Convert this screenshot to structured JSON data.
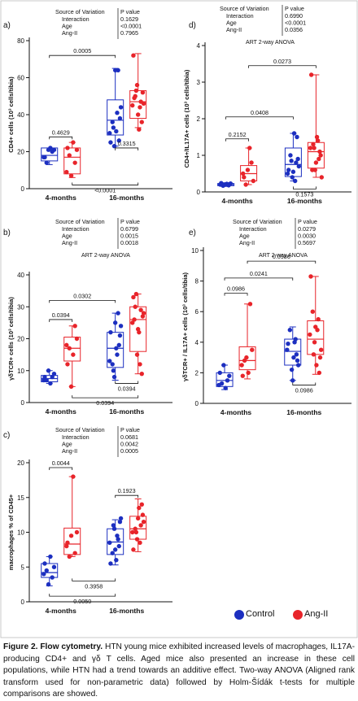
{
  "caption": {
    "label": "Figure 2. Flow cytometry.",
    "text": " HTN young mice exhibited increased levels of macrophages, IL17A-producing CD4+ and γδ T cells. Aged mice also presented an increase in these cell populations, while HTN had a trend towards an additive effect. Two-way ANOVA (Aligned rank transform used for non-parametric data) followed by Holm-Šídák t-tests for multiple comparisons are showed."
  },
  "legend": {
    "items": [
      {
        "label": "Control",
        "color": "#1c2fc0"
      },
      {
        "label": "Ang-II",
        "color": "#e8242a"
      }
    ]
  },
  "colors": {
    "control": "#1c2fc0",
    "angii": "#e8242a",
    "axis": "#111111"
  },
  "chart_data": [
    {
      "panel": "a)",
      "type": "box",
      "ylabel": "CD4+ cells (10³ cells/tibia)",
      "ylim": [
        0,
        80
      ],
      "yticks": [
        0,
        20,
        40,
        60,
        80
      ],
      "categories": [
        "4-months",
        "16-months"
      ],
      "series": [
        {
          "name": "Control",
          "points": [
            [
              17,
              21,
              20,
              22,
              21,
              14,
              17
            ],
            [
              30,
              38,
              64,
              31,
              23,
              36,
              25,
              44,
              26,
              41,
              64,
              33
            ]
          ],
          "box": [
            [
              15,
              18,
              22
            ],
            [
              29,
              37,
              48
            ]
          ],
          "whisk": [
            [
              13,
              22
            ],
            [
              23,
              65
            ]
          ]
        },
        {
          "name": "Ang-II",
          "points": [
            [
              9,
              21,
              14,
              25,
              7,
              18,
              22
            ],
            [
              45,
              52,
              47,
              32,
              56,
              50,
              72,
              46,
              36,
              44,
              40,
              53,
              49
            ]
          ],
          "box": [
            [
              8,
              17,
              22
            ],
            [
              38,
              47,
              53
            ]
          ],
          "whisk": [
            [
              6,
              25
            ],
            [
              33,
              73
            ]
          ]
        }
      ],
      "anova": {
        "header": [
          "Source of Variation",
          "P value"
        ],
        "rows": [
          [
            "Interaction",
            "0.1629"
          ],
          [
            "Age",
            "<0.0001"
          ],
          [
            "Ang-II",
            "0.7965"
          ]
        ],
        "note": ""
      },
      "pvalues": [
        {
          "label": "0.4629",
          "from": [
            0,
            0
          ],
          "to": [
            0,
            1
          ],
          "y": 28
        },
        {
          "label": "0.0005",
          "from": [
            0,
            0
          ],
          "to": [
            1,
            0
          ],
          "y": 72
        },
        {
          "label": "0.3315",
          "from": [
            1,
            0
          ],
          "to": [
            1,
            1
          ],
          "y": 22
        },
        {
          "label": "<0.0001",
          "from": [
            0,
            1
          ],
          "to": [
            1,
            1
          ],
          "y": 2,
          "below": true
        }
      ]
    },
    {
      "panel": "d)",
      "type": "box",
      "ylabel": "CD4+/IL17A+ cells (10³ cells/tibia)",
      "ylim": [
        0,
        4
      ],
      "yticks": [
        0,
        1,
        2,
        3,
        4
      ],
      "categories": [
        "4-months",
        "16-months"
      ],
      "series": [
        {
          "name": "Control",
          "points": [
            [
              0.2,
              0.23,
              0.18,
              0.22,
              0.2,
              0.17,
              0.24
            ],
            [
              0.5,
              0.9,
              0.8,
              1.6,
              0.4,
              1.0,
              0.6,
              0.7,
              1.5,
              0.3,
              0.55,
              0.85
            ]
          ],
          "box": [
            [
              0.17,
              0.2,
              0.23
            ],
            [
              0.42,
              0.75,
              1.2
            ]
          ],
          "whisk": [
            [
              0.15,
              0.25
            ],
            [
              0.3,
              1.6
            ]
          ]
        },
        {
          "name": "Ang-II",
          "points": [
            [
              0.5,
              0.3,
              0.8,
              1.2,
              0.6,
              0.2,
              0.4
            ],
            [
              1.2,
              1.0,
              0.9,
              1.5,
              0.6,
              1.3,
              3.2,
              0.4,
              1.1,
              1.4,
              0.8,
              1.2,
              0.6
            ]
          ],
          "box": [
            [
              0.3,
              0.5,
              0.72
            ],
            [
              0.65,
              1.1,
              1.35
            ]
          ],
          "whisk": [
            [
              0.2,
              1.2
            ],
            [
              0.4,
              3.2
            ]
          ]
        }
      ],
      "anova": {
        "header": [
          "Source of Variation",
          "P value"
        ],
        "rows": [
          [
            "Interaction",
            "0.6990"
          ],
          [
            "Age",
            "<0.0001"
          ],
          [
            "Ang-II",
            "0.0356"
          ]
        ],
        "note": "ART 2-way ANOVA"
      },
      "pvalues": [
        {
          "label": "0.2152",
          "from": [
            0,
            0
          ],
          "to": [
            0,
            1
          ],
          "y": 1.45
        },
        {
          "label": "0.0408",
          "from": [
            0,
            0
          ],
          "to": [
            1,
            0
          ],
          "y": 2.05
        },
        {
          "label": "0.0273",
          "from": [
            0,
            1
          ],
          "to": [
            1,
            1
          ],
          "y": 3.45
        },
        {
          "label": "0.1573",
          "from": [
            1,
            0
          ],
          "to": [
            1,
            1
          ],
          "y": 0.08,
          "below": true
        }
      ]
    },
    {
      "panel": "b)",
      "type": "box",
      "ylabel": "γδTCR+ cells (10³ cells/tibia)",
      "ylim": [
        0,
        40
      ],
      "yticks": [
        0,
        10,
        20,
        30,
        40
      ],
      "categories": [
        "4-months",
        "16-months"
      ],
      "series": [
        {
          "name": "Control",
          "points": [
            [
              7,
              9,
              8,
              6,
              10,
              7,
              8
            ],
            [
              13,
              21,
              28,
              17,
              8,
              12,
              22,
              24,
              18,
              15,
              25,
              10
            ]
          ],
          "box": [
            [
              6.5,
              7.5,
              8.5
            ],
            [
              11,
              17,
              22
            ]
          ],
          "whisk": [
            [
              6,
              10
            ],
            [
              7,
              28
            ]
          ]
        },
        {
          "name": "Ang-II",
          "points": [
            [
              18,
              20,
              24,
              15,
              5,
              17,
              12
            ],
            [
              25,
              27,
              29,
              22,
              15,
              30,
              33,
              28,
              9,
              12,
              23,
              34,
              26
            ]
          ],
          "box": [
            [
              13,
              17,
              20.5
            ],
            [
              16,
              26,
              30
            ]
          ],
          "whisk": [
            [
              5,
              24
            ],
            [
              9,
              34
            ]
          ]
        }
      ],
      "anova": {
        "header": [
          "Source of Variation",
          "P value"
        ],
        "rows": [
          [
            "Interaction",
            "0.6799"
          ],
          [
            "Age",
            "0.0015"
          ],
          [
            "Ang-II",
            "0.0018"
          ]
        ],
        "note": "ART 2-way ANOVA"
      },
      "pvalues": [
        {
          "label": "0.0394",
          "from": [
            0,
            0
          ],
          "to": [
            0,
            1
          ],
          "y": 26
        },
        {
          "label": "0.0302",
          "from": [
            0,
            0
          ],
          "to": [
            1,
            0
          ],
          "y": 32
        },
        {
          "label": "0.0394",
          "from": [
            1,
            0
          ],
          "to": [
            1,
            1
          ],
          "y": 6,
          "below": true
        },
        {
          "label": "0.0394",
          "from": [
            0,
            1
          ],
          "to": [
            1,
            1
          ],
          "y": 1.5,
          "below": true
        }
      ]
    },
    {
      "panel": "e)",
      "type": "box",
      "ylabel": "γδTCR+ / IL17A+ cells (10³ cells/tibia)",
      "ylim": [
        0,
        10
      ],
      "yticks": [
        0,
        2,
        4,
        6,
        8,
        10
      ],
      "categories": [
        "4-months",
        "16-months"
      ],
      "series": [
        {
          "name": "Control",
          "points": [
            [
              1.2,
              1.8,
              1.5,
              1.0,
              2.5,
              1.3,
              2.0
            ],
            [
              3.5,
              2.8,
              4.2,
              3.0,
              2.2,
              4.8,
              3.9,
              2.5,
              3.2,
              4.0,
              1.5
            ]
          ],
          "box": [
            [
              1.1,
              1.5,
              2.0
            ],
            [
              2.5,
              3.4,
              4.2
            ]
          ],
          "whisk": [
            [
              0.9,
              2.5
            ],
            [
              1.5,
              5.0
            ]
          ]
        },
        {
          "name": "Ang-II",
          "points": [
            [
              2.5,
              3.5,
              6.5,
              2.0,
              3.0,
              2.8,
              1.8
            ],
            [
              4.5,
              3.0,
              5.5,
              2.5,
              4.0,
              6.0,
              8.3,
              3.5,
              2.0,
              4.8,
              5.0,
              3.2
            ]
          ],
          "box": [
            [
              2.2,
              2.8,
              3.7
            ],
            [
              3.2,
              4.2,
              5.4
            ]
          ],
          "whisk": [
            [
              1.6,
              6.5
            ],
            [
              1.9,
              8.3
            ]
          ]
        }
      ],
      "anova": {
        "header": [
          "Source of Variation",
          "P value"
        ],
        "rows": [
          [
            "Interaction",
            "0.0279"
          ],
          [
            "Age",
            "0.0030"
          ],
          [
            "Ang-II",
            "0.5697"
          ]
        ],
        "note": "ART 2-way ANOVA"
      },
      "pvalues": [
        {
          "label": "0.0986",
          "from": [
            0,
            0
          ],
          "to": [
            0,
            1
          ],
          "y": 7.2
        },
        {
          "label": "0.0241",
          "from": [
            0,
            0
          ],
          "to": [
            1,
            0
          ],
          "y": 8.2
        },
        {
          "label": "0.0986",
          "from": [
            0,
            1
          ],
          "to": [
            1,
            1
          ],
          "y": 9.3
        },
        {
          "label": "0.0986",
          "from": [
            1,
            0
          ],
          "to": [
            1,
            1
          ],
          "y": 1.2,
          "below": true
        }
      ]
    },
    {
      "panel": "c)",
      "type": "box",
      "ylabel": "macrophages % of CD45+",
      "ylim": [
        0,
        20
      ],
      "yticks": [
        0,
        5,
        10,
        15,
        20
      ],
      "categories": [
        "4-months",
        "16-months"
      ],
      "series": [
        {
          "name": "Control",
          "points": [
            [
              4,
              5,
              3.5,
              6.5,
              2.5,
              4.5,
              5.5
            ],
            [
              8.5,
              11.5,
              9,
              6,
              10.5,
              7,
              5.5,
              12,
              8,
              9.5,
              7.5,
              11
            ]
          ],
          "box": [
            [
              3.5,
              4.2,
              5.5
            ],
            [
              6.8,
              8.6,
              10.5
            ]
          ],
          "whisk": [
            [
              2.3,
              6.5
            ],
            [
              5.3,
              11.8
            ]
          ]
        },
        {
          "name": "Ang-II",
          "points": [
            [
              8,
              10,
              7,
              18,
              9.5,
              6.5,
              8.5
            ],
            [
              10,
              12.5,
              11,
              13.5,
              9,
              10.5,
              7.5,
              11.5,
              14,
              8.5,
              12,
              10
            ]
          ],
          "box": [
            [
              6.8,
              8.3,
              10.6
            ],
            [
              9,
              10.5,
              12.3
            ]
          ],
          "whisk": [
            [
              6.5,
              18
            ],
            [
              7.2,
              14.8
            ]
          ]
        }
      ],
      "anova": {
        "header": [
          "Source of Variation",
          "P value"
        ],
        "rows": [
          [
            "Interaction",
            "0.0681"
          ],
          [
            "Age",
            "0.0042"
          ],
          [
            "Ang-II",
            "0.0005"
          ]
        ],
        "note": ""
      },
      "pvalues": [
        {
          "label": "0.0044",
          "from": [
            0,
            0
          ],
          "to": [
            0,
            1
          ],
          "y": 19.3
        },
        {
          "label": "0.1923",
          "from": [
            1,
            0
          ],
          "to": [
            1,
            1
          ],
          "y": 15.3
        },
        {
          "label": "0.3958",
          "from": [
            0,
            1
          ],
          "to": [
            1,
            0
          ],
          "y": 3.0,
          "below": true
        },
        {
          "label": "0.0050",
          "from": [
            0,
            0
          ],
          "to": [
            1,
            0
          ],
          "y": 0.8,
          "below": true
        }
      ]
    }
  ]
}
